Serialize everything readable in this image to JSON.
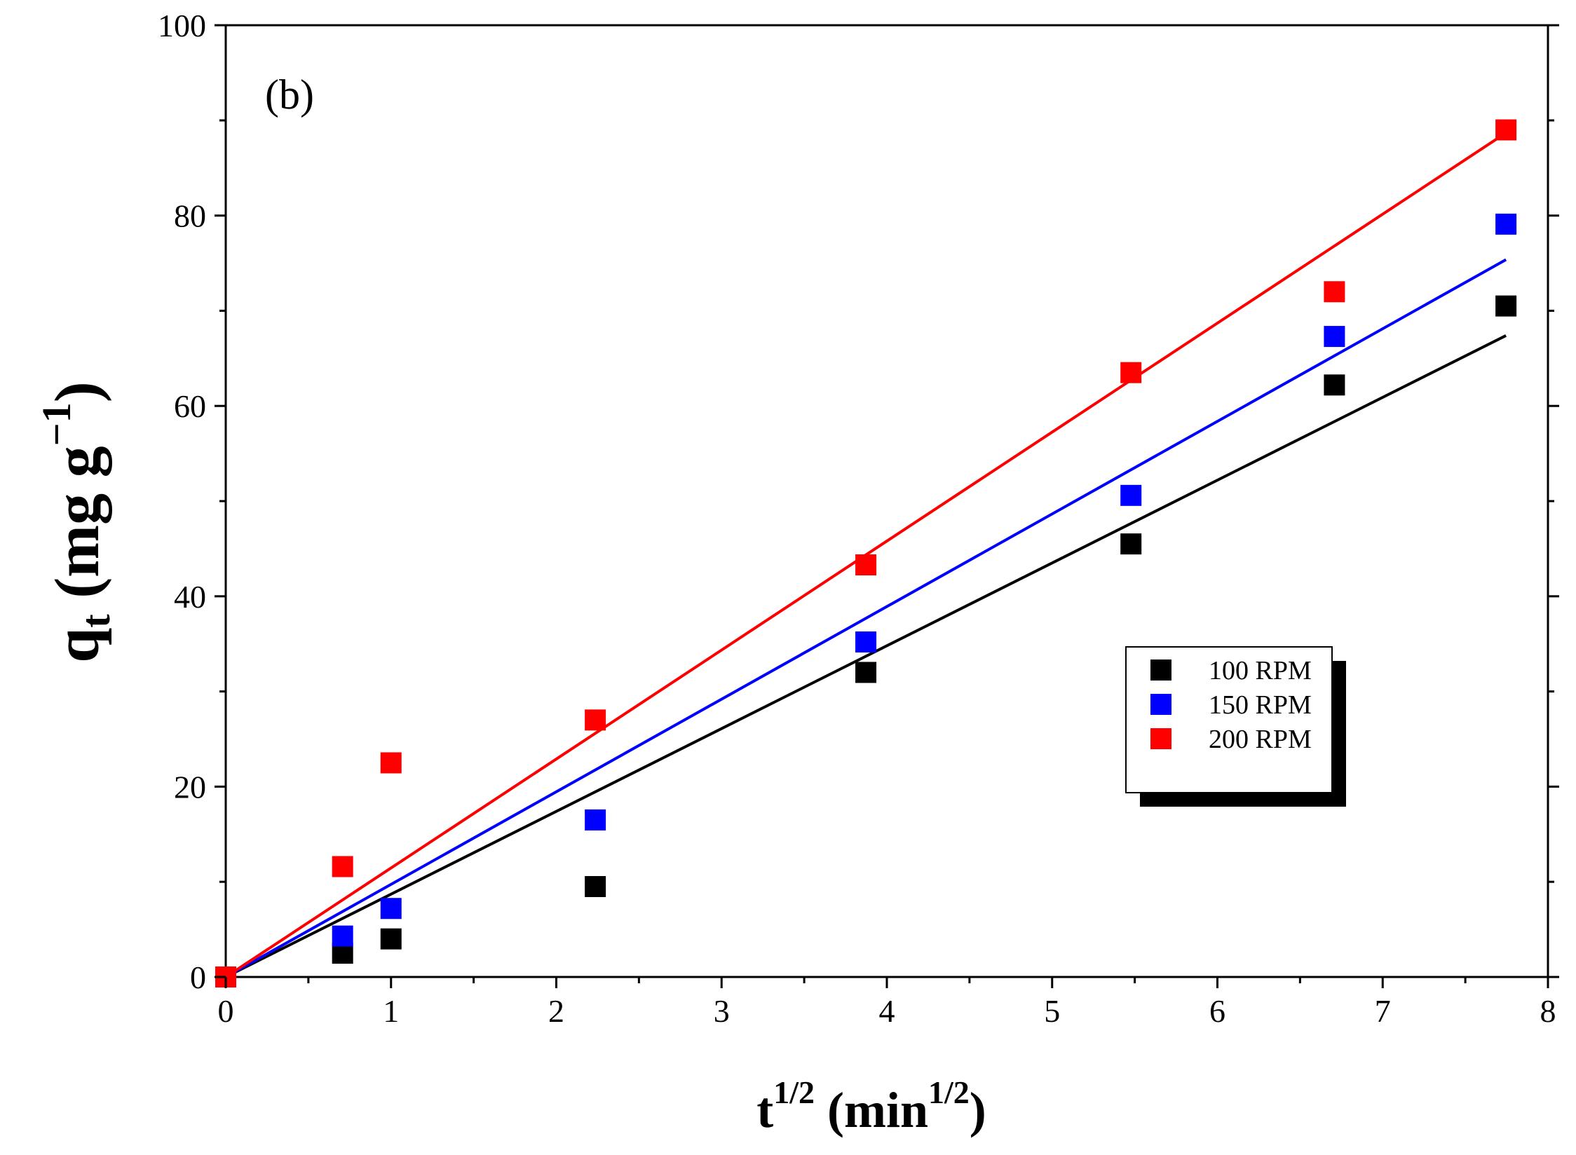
{
  "chart_data": {
    "type": "scatter",
    "panel_label": "(b)",
    "xlabel": {
      "base": "t",
      "base_sup": "1/2",
      "unit_open": " (min",
      "unit_sup": "1/2",
      "unit_close": ")"
    },
    "ylabel": {
      "base": "q",
      "base_sub": "t",
      "unit_open": " (mg g",
      "unit_sup": "−1",
      "unit_close": ")"
    },
    "xlim": [
      0,
      8
    ],
    "ylim": [
      0,
      100
    ],
    "x_ticks": [
      0,
      1,
      2,
      3,
      4,
      5,
      6,
      7,
      8
    ],
    "y_ticks": [
      0,
      20,
      40,
      60,
      80,
      100
    ],
    "x_tick_labels": [
      "0",
      "1",
      "2",
      "3",
      "4",
      "5",
      "6",
      "7",
      "8"
    ],
    "y_tick_labels": [
      "0",
      "20",
      "40",
      "60",
      "80",
      "100"
    ],
    "grid": false,
    "legend_position": "center-right",
    "x": [
      0,
      0.707,
      1.0,
      2.236,
      3.873,
      5.477,
      6.708,
      7.746
    ],
    "series": [
      {
        "name": "100 RPM",
        "color": "#000000",
        "values": [
          0,
          2.5,
          4.0,
          9.5,
          32.0,
          45.5,
          62.2,
          70.5
        ],
        "fit_slope": 8.7
      },
      {
        "name": "150 RPM",
        "color": "#0000ff",
        "values": [
          0,
          4.3,
          7.2,
          16.5,
          35.2,
          50.6,
          67.3,
          79.1
        ],
        "fit_slope": 9.73
      },
      {
        "name": "200 RPM",
        "color": "#ff0000",
        "values": [
          0,
          11.6,
          22.5,
          27.0,
          43.3,
          63.5,
          72.0,
          89.0
        ],
        "fit_slope": 11.45
      }
    ]
  }
}
